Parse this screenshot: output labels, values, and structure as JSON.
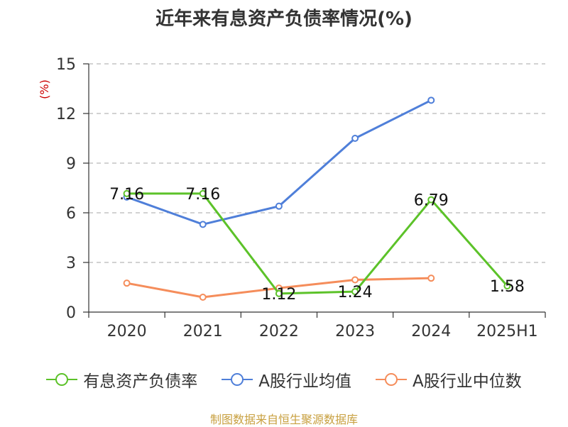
{
  "chart_data": {
    "type": "line",
    "title": "近年来有息资产负债率情况(%)",
    "ylabel": "(%)",
    "categories": [
      "2020",
      "2021",
      "2022",
      "2023",
      "2024",
      "2025H1"
    ],
    "ylim": [
      0,
      15
    ],
    "yticks": [
      0,
      3,
      6,
      9,
      12,
      15
    ],
    "grid": true,
    "legend_position": "bottom",
    "series": [
      {
        "name": "有息资产负债率",
        "color": "#5cc229",
        "values": [
          7.16,
          7.16,
          1.12,
          1.24,
          6.79,
          1.58
        ],
        "labels": [
          "7.16",
          "7.16",
          "1.12",
          "1.24",
          "6.79",
          "1.58"
        ]
      },
      {
        "name": "A股行业均值",
        "color": "#4f7fd9",
        "values": [
          6.95,
          5.3,
          6.4,
          10.5,
          12.8,
          null
        ]
      },
      {
        "name": "A股行业中位数",
        "color": "#f58d5b",
        "values": [
          1.75,
          0.9,
          1.45,
          1.95,
          2.05,
          null
        ]
      }
    ]
  },
  "source": "制图数据来自恒生聚源数据库"
}
